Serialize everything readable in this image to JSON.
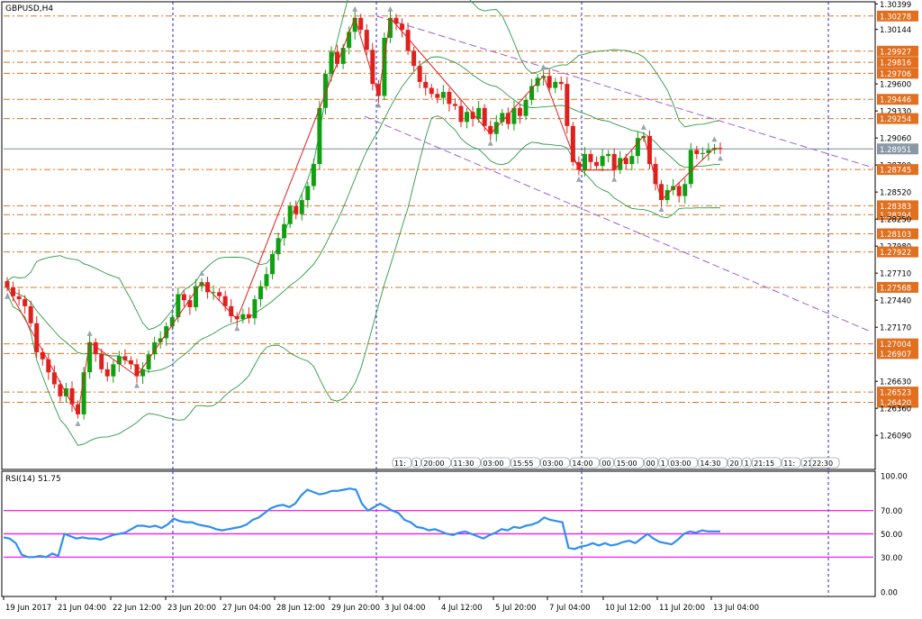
{
  "chart_data": [
    {
      "type": "candlestick",
      "title": "GBPUSD,H4",
      "ylim": [
        1.2575,
        1.3042
      ],
      "price_ticks": [
        "1.30399",
        "1.30278",
        "1.30144",
        "1.29927",
        "1.29816",
        "1.29706",
        "1.29600",
        "1.29446",
        "1.29330",
        "1.29254",
        "1.29060",
        "1.28951",
        "1.28790",
        "1.28745",
        "1.28520",
        "1.28383",
        "1.28294",
        "1.28250",
        "1.28103",
        "1.27980",
        "1.27922",
        "1.27710",
        "1.27568",
        "1.27440",
        "1.27170",
        "1.27004",
        "1.26907",
        "1.26630",
        "1.26523",
        "1.26420",
        "1.26360",
        "1.26090"
      ],
      "x_ticks": [
        "19 Jun 2017",
        "21 Jun 04:00",
        "22 Jun 12:00",
        "23 Jun 20:00",
        "27 Jun 04:00",
        "28 Jun 12:00",
        "29 Jun 20:00",
        "3 Jul 04:00",
        "4 Jul 12:00",
        "5 Jul 20:00",
        "7 Jul 04:00",
        "10 Jul 12:00",
        "11 Jul 20:00",
        "13 Jul 04:00"
      ],
      "horizontal_levels": [
        1.30278,
        1.29927,
        1.29816,
        1.29706,
        1.29446,
        1.29254,
        1.28745,
        1.28383,
        1.28294,
        1.28103,
        1.27922,
        1.27568,
        1.27004,
        1.26907,
        1.26523,
        1.2642
      ],
      "current_price": 1.28951,
      "bullish_color": "#109f10",
      "bearish_color": "#e0201c",
      "level_color": "#e07020",
      "channel_color": "#a060d0",
      "bollinger_color": "#2c9a45",
      "zigzag_color": "#e0201c",
      "grid": "vertical dashed",
      "session_tags": [
        "11:",
        "1",
        "20:00",
        "11:30",
        "03:00",
        "15:55",
        "03:00",
        "14:00",
        "00",
        "15:00",
        "00",
        "1",
        "03:00",
        "14:30",
        "20",
        "1",
        "21:15",
        "11:",
        "21:00",
        "1",
        "22:30"
      ],
      "channel_upper": [
        [
          1.30278,
          1.28745
        ]
      ],
      "channel_lower": [
        [
          1.2933,
          1.2717
        ]
      ],
      "candles_close": [
        1.2757,
        1.2748,
        1.2745,
        1.2738,
        1.2721,
        1.2692,
        1.2685,
        1.2672,
        1.266,
        1.2648,
        1.2656,
        1.264,
        1.263,
        1.2672,
        1.2702,
        1.269,
        1.2675,
        1.2668,
        1.268,
        1.2688,
        1.2684,
        1.268,
        1.2668,
        1.2675,
        1.269,
        1.2702,
        1.2706,
        1.2718,
        1.2727,
        1.275,
        1.2744,
        1.2737,
        1.2758,
        1.2762,
        1.2752,
        1.2752,
        1.2748,
        1.2738,
        1.2728,
        1.2725,
        1.273,
        1.2726,
        1.2745,
        1.2758,
        1.277,
        1.279,
        1.2806,
        1.282,
        1.2838,
        1.283,
        1.2844,
        1.2858,
        1.288,
        1.2936,
        1.297,
        1.2992,
        1.298,
        1.2996,
        1.3012,
        1.3026,
        1.3014,
        1.2994,
        1.296,
        1.2948,
        1.3006,
        1.3026,
        1.302,
        1.3014,
        1.2993,
        1.2978,
        1.2962,
        1.2956,
        1.295,
        1.2946,
        1.2952,
        1.294,
        1.2938,
        1.2922,
        1.2932,
        1.2925,
        1.2936,
        1.2918,
        1.291,
        1.2922,
        1.2931,
        1.292,
        1.2936,
        1.2928,
        1.2944,
        1.2958,
        1.2966,
        1.2968,
        1.2956,
        1.2962,
        1.296,
        1.2918,
        1.2882,
        1.2874,
        1.289,
        1.2882,
        1.2878,
        1.2888,
        1.289,
        1.2874,
        1.2886,
        1.288,
        1.2888,
        1.2906,
        1.2908,
        1.288,
        1.286,
        1.2844,
        1.2854,
        1.2858,
        1.2848,
        1.286,
        1.2894,
        1.289,
        1.2891,
        1.2894,
        1.2896,
        1.2895
      ]
    },
    {
      "type": "line",
      "title": "RSI(14) 51.75",
      "ylim": [
        0,
        100
      ],
      "y_ticks": [
        "100.00",
        "70.00",
        "50.00",
        "30.00",
        "0.00"
      ],
      "levels": [
        70,
        50,
        30
      ],
      "level_color": "#ff00ff",
      "line_color": "#2f8ff0",
      "values": [
        47,
        46,
        42,
        32,
        30,
        30,
        31,
        30,
        33,
        31,
        50,
        48,
        46,
        47,
        46,
        46,
        45,
        47,
        49,
        50,
        51,
        54,
        57,
        57,
        56,
        57,
        55,
        58,
        63,
        61,
        60,
        60,
        58,
        57,
        56,
        54,
        53,
        54,
        55,
        56,
        58,
        62,
        64,
        68,
        72,
        74,
        75,
        73,
        76,
        83,
        88,
        86,
        84,
        85,
        87,
        87,
        88,
        89,
        88,
        76,
        70,
        73,
        76,
        73,
        70,
        68,
        62,
        60,
        56,
        55,
        53,
        54,
        52,
        50,
        49,
        51,
        52,
        50,
        48,
        46,
        49,
        51,
        54,
        53,
        56,
        55,
        57,
        58,
        60,
        64,
        62,
        61,
        60,
        38,
        37,
        39,
        40,
        42,
        40,
        42,
        40,
        41,
        43,
        44,
        42,
        46,
        50,
        46,
        43,
        42,
        41,
        45,
        50,
        52,
        51,
        53,
        52,
        52,
        52
      ],
      "x_ticks": [
        "19 Jun 2017",
        "21 Jun 04:00",
        "22 Jun 12:00",
        "23 Jun 20:00",
        "27 Jun 04:00",
        "28 Jun 12:00",
        "29 Jun 20:00",
        "3 Jul 04:00",
        "4 Jul 12:00",
        "5 Jul 20:00",
        "7 Jul 04:00",
        "10 Jul 12:00",
        "11 Jul 20:00",
        "13 Jul 04:00"
      ]
    }
  ]
}
